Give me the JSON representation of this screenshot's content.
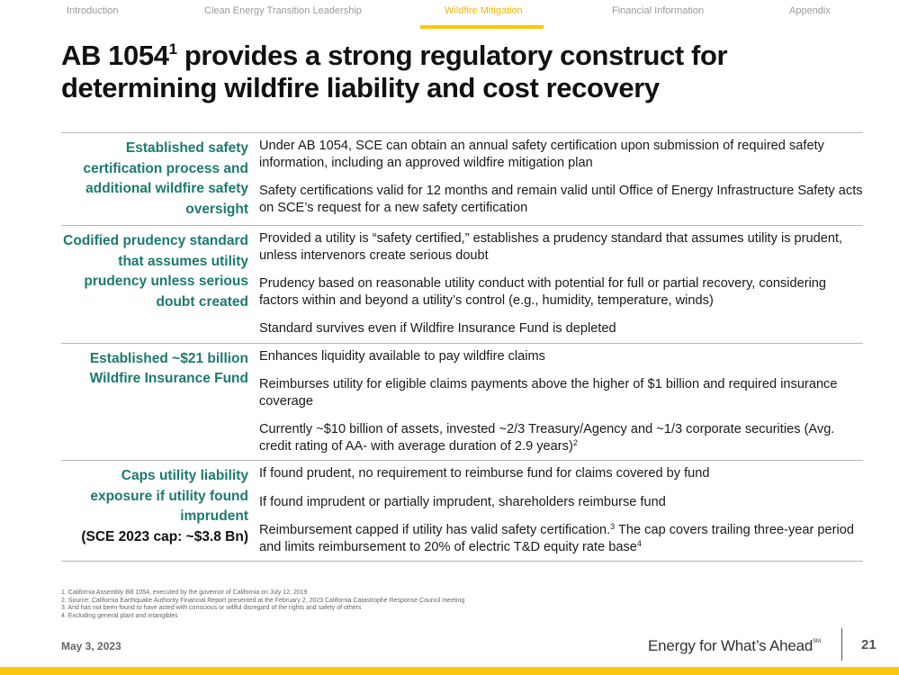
{
  "nav": {
    "items": [
      {
        "label": "Introduction",
        "active": false
      },
      {
        "label": "Clean Energy Transition Leadership",
        "active": false
      },
      {
        "label": "Wildfire Mitigation",
        "active": true
      },
      {
        "label": "Financial Information",
        "active": false
      },
      {
        "label": "Appendix",
        "active": false
      }
    ],
    "accent_color": "#F9C80E"
  },
  "title": {
    "line1_pre": "AB 1054",
    "line1_sup": "1",
    "line1_post": " provides a strong regulatory construct for",
    "line2": "determining wildfire liability and cost recovery"
  },
  "rows": [
    {
      "heading": "Established safety certification process and additional wildfire safety oversight",
      "heading_note": "",
      "bullets": [
        {
          "text": "Under AB 1054, SCE can obtain an annual safety certification upon submission of required safety information, including an approved wildfire mitigation plan",
          "sup": "",
          "tail": ""
        },
        {
          "text": "Safety certifications valid for 12 months and remain valid until Office of Energy Infrastructure Safety acts on SCE’s request for a new safety certification",
          "sup": "",
          "tail": ""
        }
      ]
    },
    {
      "heading": "Codified prudency standard that assumes utility prudency unless serious doubt created",
      "heading_note": "",
      "bullets": [
        {
          "text": "Provided a utility is “safety certified,” establishes a prudency standard that assumes utility is prudent, unless intervenors create serious doubt",
          "sup": "",
          "tail": ""
        },
        {
          "text": "Prudency based on reasonable utility conduct with potential for full or partial recovery, considering factors within and beyond a utility’s control (e.g., humidity, temperature, winds)",
          "sup": "",
          "tail": ""
        },
        {
          "text": "Standard survives even if Wildfire Insurance Fund is depleted",
          "sup": "",
          "tail": ""
        }
      ]
    },
    {
      "heading": "Established ~$21 billion Wildfire Insurance Fund",
      "heading_note": "",
      "bullets": [
        {
          "text": "Enhances liquidity available to pay wildfire claims",
          "sup": "",
          "tail": ""
        },
        {
          "text": "Reimburses utility for eligible claims payments above the higher of $1 billion and required insurance coverage",
          "sup": "",
          "tail": ""
        },
        {
          "text": "Currently ~$10 billion of assets, invested ~2/3 Treasury/Agency and ~1/3 corporate securities (Avg. credit rating of AA- with average duration of 2.9 years)",
          "sup": "2",
          "tail": ""
        }
      ]
    },
    {
      "heading": "Caps utility liability exposure if utility found imprudent",
      "heading_note": "(SCE 2023 cap: ~$3.8 Bn)",
      "bullets": [
        {
          "text": "If found prudent, no requirement to reimburse fund for claims covered by fund",
          "sup": "",
          "tail": ""
        },
        {
          "text": "If found imprudent or partially imprudent, shareholders reimburse fund",
          "sup": "",
          "tail": ""
        },
        {
          "text": "Reimbursement capped if utility has valid safety certification.",
          "sup": "3",
          "tail": " The cap covers trailing three-year period and limits reimbursement to 20% of electric T&D equity rate base",
          "sup2": "4"
        }
      ]
    }
  ],
  "footnotes": [
    "1.  California Assembly Bill 1054, executed by the governor of California on July 12, 2019",
    "2.  Source: California Earthquake Authority Financial Report presented at the February 2, 2023 California Catastrophe Response Council meeting",
    "3.  And has not been found to have acted with conscious or willful disregard of the rights and safety of others",
    "4.  Excluding general plant and intangibles"
  ],
  "footer": {
    "date": "May 3, 2023",
    "tagline": "Energy for What’s Ahead",
    "tagline_mark": "SM",
    "page_number": "21"
  },
  "colors": {
    "heading_teal": "#1C7A6E",
    "accent_yellow": "#F9C80E"
  }
}
